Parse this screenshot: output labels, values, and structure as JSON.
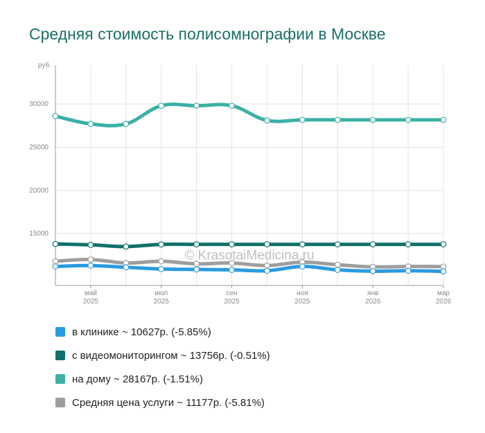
{
  "title": "Средняя стоимость полисомнографии в Москве",
  "watermark": "© KrasotaiMedicina.ru",
  "chart_data": {
    "type": "line",
    "ylabel": "руб.",
    "ylim": [
      9000,
      34500
    ],
    "yticks": [
      15000,
      20000,
      25000,
      30000
    ],
    "grid": true,
    "legend_position": "bottom",
    "x_count": 12,
    "x_ticks": [
      {
        "index": 1,
        "line1": "май",
        "line2": "2025"
      },
      {
        "index": 3,
        "line1": "июл",
        "line2": "2025"
      },
      {
        "index": 5,
        "line1": "сен",
        "line2": "2025"
      },
      {
        "index": 7,
        "line1": "ноя",
        "line2": "2025"
      },
      {
        "index": 9,
        "line1": "янв",
        "line2": "2026"
      },
      {
        "index": 11,
        "line1": "мар",
        "line2": "2026"
      }
    ],
    "series": [
      {
        "name": "в клинике ~ 10627р. (-5.85%)",
        "color": "#2b9be0",
        "values": [
          11200,
          11300,
          11100,
          10900,
          10850,
          10800,
          10700,
          11200,
          10800,
          10650,
          10700,
          10627
        ]
      },
      {
        "name": "с видеомониторингом ~ 13756р. (-0.51%)",
        "color": "#11706a",
        "values": [
          13800,
          13700,
          13500,
          13750,
          13756,
          13756,
          13756,
          13756,
          13756,
          13756,
          13756,
          13756
        ]
      },
      {
        "name": "на дому ~ 28167р. (-1.51%)",
        "color": "#3bb0a6",
        "values": [
          28600,
          27700,
          27700,
          29800,
          29800,
          29800,
          28100,
          28167,
          28167,
          28167,
          28167,
          28167
        ]
      },
      {
        "name": "Средняя цена услуги ~ 11177р. (-5.81%)",
        "color": "#9e9e9e",
        "values": [
          11800,
          12000,
          11600,
          11800,
          11500,
          11600,
          11300,
          11700,
          11400,
          11150,
          11200,
          11177
        ]
      }
    ]
  }
}
